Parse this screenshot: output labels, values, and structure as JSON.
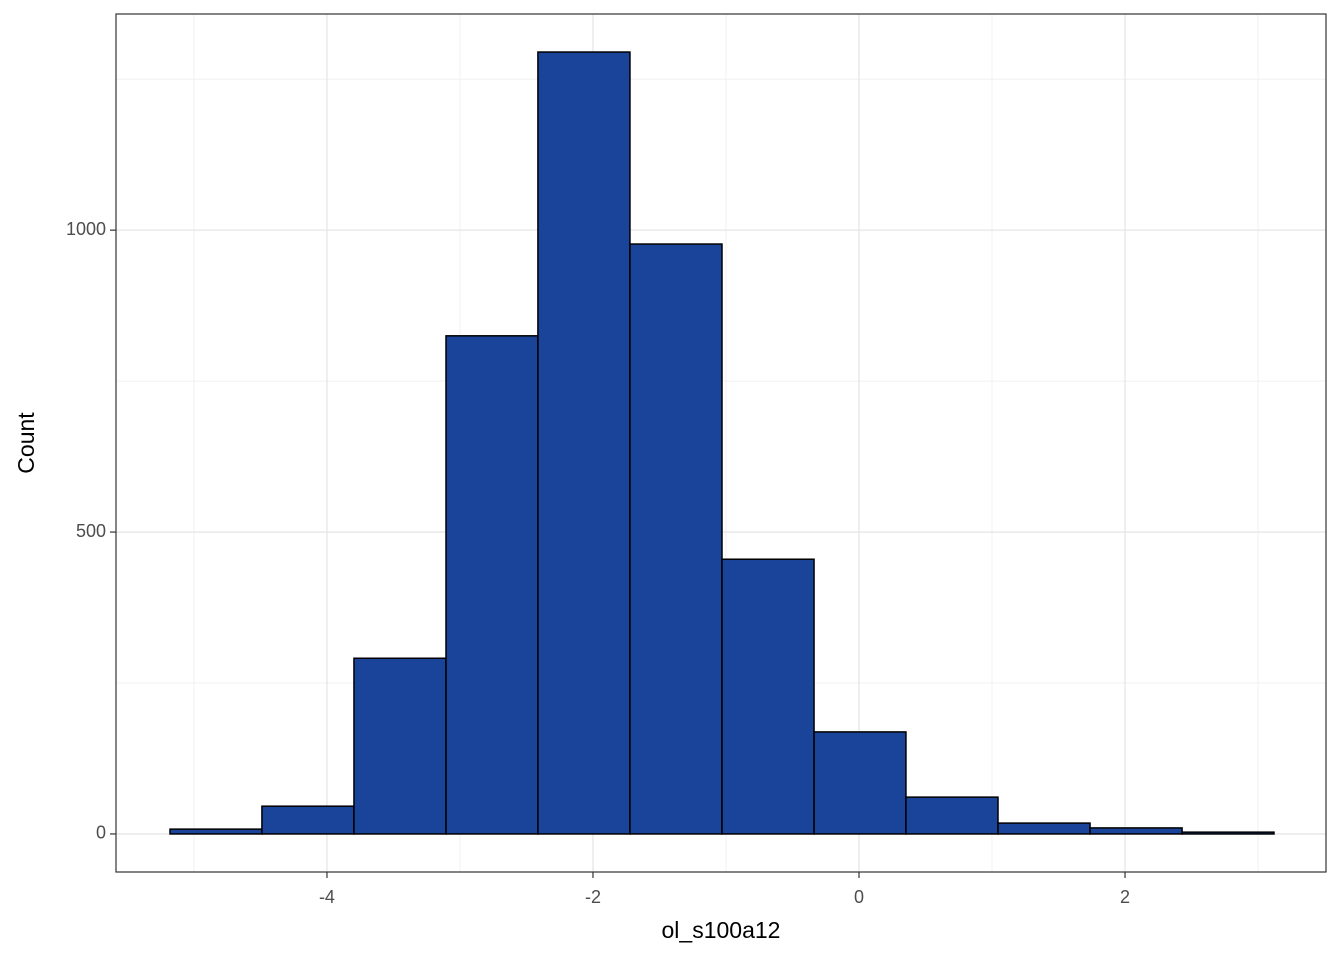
{
  "chart_data": {
    "type": "histogram",
    "x_label": "ol_s100a12",
    "y_label": "Count",
    "bins": [
      -5.18,
      -4.489,
      -3.797,
      -3.105,
      -2.414,
      -1.722,
      -1.03,
      -0.338,
      0.353,
      1.045,
      1.737,
      2.429,
      3.12
    ],
    "counts": [
      8,
      46,
      291,
      825,
      1295,
      977,
      455,
      169,
      61,
      18,
      10,
      3
    ],
    "color": "#1a4499",
    "edge_color": "#000000",
    "xlim": [
      -5.586,
      3.511
    ],
    "ylim": [
      -63,
      1358
    ],
    "xticks": [
      -4,
      -2,
      0,
      2
    ],
    "yticks": [
      0,
      500,
      1000
    ],
    "grid": true,
    "minor_grid": true
  }
}
